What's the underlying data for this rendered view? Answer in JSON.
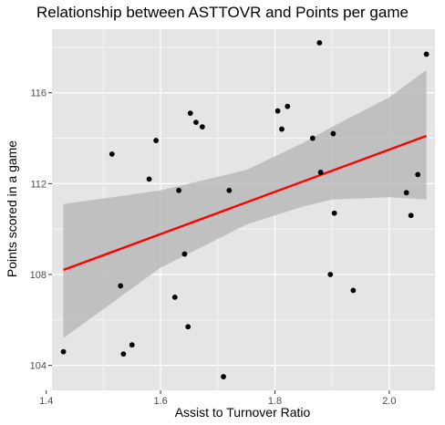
{
  "chart_data": {
    "type": "scatter",
    "title": "Relationship between ASTTOVR and Points per game",
    "xlabel": "Assist to Turnover Ratio",
    "ylabel": "Points scored in a game",
    "xlim": [
      1.41,
      2.08
    ],
    "ylim": [
      102.9,
      118.8
    ],
    "x_ticks": [
      1.4,
      1.6,
      1.8,
      2.0
    ],
    "x_tick_labels": [
      "1.4",
      "1.6",
      "1.8",
      "2.0"
    ],
    "y_ticks": [
      104,
      108,
      112,
      116
    ],
    "y_tick_labels": [
      "104",
      "108",
      "112",
      "116"
    ],
    "grid": true,
    "points": [
      {
        "x": 1.43,
        "y": 104.6
      },
      {
        "x": 1.515,
        "y": 113.3
      },
      {
        "x": 1.53,
        "y": 107.5
      },
      {
        "x": 1.535,
        "y": 104.5
      },
      {
        "x": 1.55,
        "y": 104.9
      },
      {
        "x": 1.58,
        "y": 112.2
      },
      {
        "x": 1.592,
        "y": 113.9
      },
      {
        "x": 1.625,
        "y": 107.0
      },
      {
        "x": 1.632,
        "y": 111.7
      },
      {
        "x": 1.642,
        "y": 108.9
      },
      {
        "x": 1.648,
        "y": 105.7
      },
      {
        "x": 1.652,
        "y": 115.1
      },
      {
        "x": 1.662,
        "y": 114.7
      },
      {
        "x": 1.673,
        "y": 114.5
      },
      {
        "x": 1.71,
        "y": 103.5
      },
      {
        "x": 1.72,
        "y": 111.7
      },
      {
        "x": 1.805,
        "y": 115.2
      },
      {
        "x": 1.812,
        "y": 114.4
      },
      {
        "x": 1.822,
        "y": 115.4
      },
      {
        "x": 1.866,
        "y": 114.0
      },
      {
        "x": 1.878,
        "y": 118.2
      },
      {
        "x": 1.88,
        "y": 112.5
      },
      {
        "x": 1.897,
        "y": 108.0
      },
      {
        "x": 1.902,
        "y": 114.2
      },
      {
        "x": 1.904,
        "y": 110.7
      },
      {
        "x": 1.937,
        "y": 107.3
      },
      {
        "x": 2.03,
        "y": 111.6
      },
      {
        "x": 2.038,
        "y": 110.6
      },
      {
        "x": 2.05,
        "y": 112.4
      },
      {
        "x": 2.065,
        "y": 117.7
      }
    ],
    "fit": {
      "x": [
        1.43,
        2.065
      ],
      "y": [
        108.2,
        114.1
      ]
    },
    "confidence_band": {
      "x": [
        1.43,
        1.6,
        1.75,
        1.85,
        1.9,
        2.0,
        2.065
      ],
      "lower": [
        105.2,
        108.3,
        110.2,
        111.0,
        111.3,
        111.4,
        111.3
      ],
      "upper": [
        111.1,
        111.7,
        112.6,
        113.8,
        114.5,
        115.8,
        117.0
      ]
    },
    "colors": {
      "panel": "#e5e5e5",
      "grid": "#ffffff",
      "point": "#000000",
      "fit_line": "#ff0000",
      "band": "#b3b3b3"
    }
  }
}
